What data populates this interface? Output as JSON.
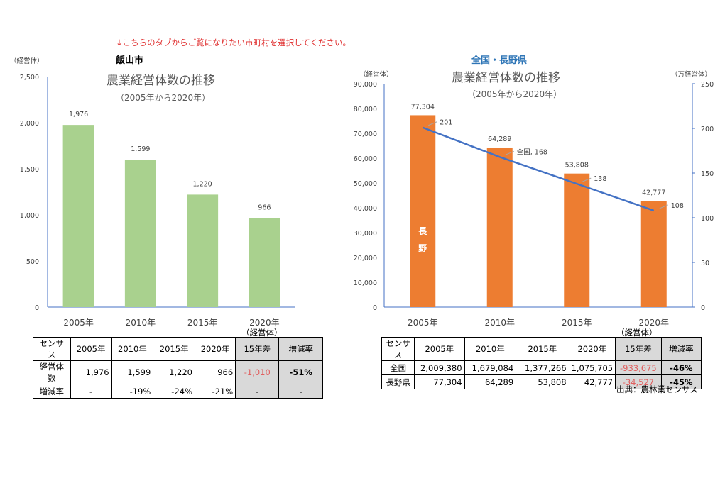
{
  "instruction_note": "↓こちらのタブからご覧になりたい市町村を選択してください。",
  "source": "出典：農林業センサス",
  "colors": {
    "left_bar": "#a9d18e",
    "right_bar": "#ed7d31",
    "line": "#4472c4",
    "negative": "#e06060",
    "note": "#e03030"
  },
  "chart_data": [
    {
      "type": "bar",
      "heading": "飯山市",
      "title": "農業経営体数の推移",
      "subtitle": "（2005年から2020年）",
      "ylabel": "（経営体）",
      "categories": [
        "2005年",
        "2010年",
        "2015年",
        "2020年"
      ],
      "values": [
        1976,
        1599,
        1220,
        966
      ],
      "data_labels": [
        "1,976",
        "1,599",
        "1,220",
        "966"
      ],
      "ylim": [
        0,
        2500
      ],
      "yticks": [
        "0",
        "500",
        "1,000",
        "1,500",
        "2,000",
        "2,500"
      ],
      "grid": false
    },
    {
      "type": "bar+line",
      "heading": "全国・長野県",
      "title": "農業経営体数の推移",
      "subtitle": "（2005年から2020年）",
      "ylabel": "（経営体）",
      "y2label": "（万経営体）",
      "categories": [
        "2005年",
        "2010年",
        "2015年",
        "2020年"
      ],
      "series": [
        {
          "name": "長野",
          "type": "bar",
          "axis": "left",
          "values": [
            77304,
            64289,
            53808,
            42777
          ],
          "data_labels": [
            "77,304",
            "64,289",
            "53,808",
            "42,777"
          ]
        },
        {
          "name": "全国",
          "type": "line",
          "axis": "right",
          "values": [
            201,
            168,
            138,
            108
          ],
          "data_labels": [
            "201",
            "全国, 168",
            "138",
            "108"
          ]
        }
      ],
      "ylim": [
        0,
        90000
      ],
      "yticks": [
        "0",
        "10,000",
        "20,000",
        "30,000",
        "40,000",
        "50,000",
        "60,000",
        "70,000",
        "80,000",
        "90,000"
      ],
      "y2lim": [
        0,
        250
      ],
      "y2ticks": [
        "0",
        "50",
        "100",
        "150",
        "200",
        "250"
      ],
      "grid": false
    }
  ],
  "left_table": {
    "unit": "（経営体）",
    "headers": [
      "センサス",
      "2005年",
      "2010年",
      "2015年",
      "2020年",
      "15年差",
      "増減率"
    ],
    "rows": [
      [
        "経営体数",
        "1,976",
        "1,599",
        "1,220",
        "966",
        "-1,010",
        "-51%"
      ],
      [
        "増減率",
        "-",
        "-19%",
        "-24%",
        "-21%",
        "-",
        "-"
      ]
    ]
  },
  "right_table": {
    "unit": "（経営体）",
    "headers": [
      "センサス",
      "2005年",
      "2010年",
      "2015年",
      "2020年",
      "15年差",
      "増減率"
    ],
    "rows": [
      [
        "全国",
        "2,009,380",
        "1,679,084",
        "1,377,266",
        "1,075,705",
        "-933,675",
        "-46%"
      ],
      [
        "長野県",
        "77,304",
        "64,289",
        "53,808",
        "42,777",
        "-34,527",
        "-45%"
      ]
    ]
  }
}
